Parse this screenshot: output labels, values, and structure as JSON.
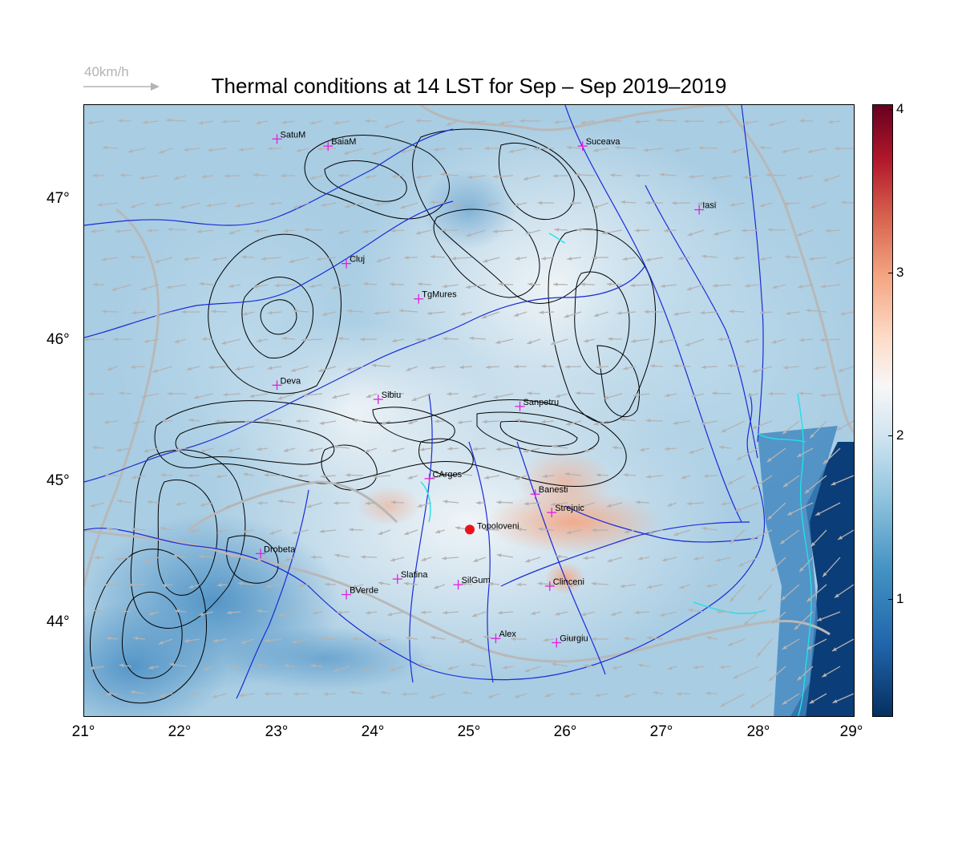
{
  "title": "Thermal conditions at 14 LST for Sep – Sep  2019–2019",
  "scale": {
    "label": "40km/h",
    "color": "#b3b3b3"
  },
  "axes": {
    "x_ticks": [
      "21°",
      "22°",
      "23°",
      "24°",
      "25°",
      "26°",
      "27°",
      "28°",
      "29°"
    ],
    "y_ticks": [
      "47°",
      "46°",
      "45°",
      "44°"
    ],
    "lon_range": [
      21,
      29
    ],
    "lat_range": [
      43.35,
      47.68
    ]
  },
  "colorbar": {
    "ticks": [
      "4",
      "3",
      "2",
      "1"
    ],
    "range": [
      0.3,
      4.05
    ],
    "colors": [
      "#053061",
      "#2166ac",
      "#4393c3",
      "#92c5de",
      "#d1e5f0",
      "#f7f7f7",
      "#fddbc7",
      "#f4a582",
      "#d6604d",
      "#b2182b",
      "#67001f"
    ]
  },
  "stations": [
    {
      "name": "SatuM",
      "lon": 23.0,
      "lat": 47.44
    },
    {
      "name": "BaiaM",
      "lon": 23.53,
      "lat": 47.39
    },
    {
      "name": "Suceava",
      "lon": 26.17,
      "lat": 47.39
    },
    {
      "name": "Iasi",
      "lon": 27.38,
      "lat": 46.94
    },
    {
      "name": "Cluj",
      "lon": 23.72,
      "lat": 46.56
    },
    {
      "name": "TgMures",
      "lon": 24.47,
      "lat": 46.31
    },
    {
      "name": "Deva",
      "lon": 23.0,
      "lat": 45.7
    },
    {
      "name": "Sibiu",
      "lon": 24.05,
      "lat": 45.6
    },
    {
      "name": "Sanpetru",
      "lon": 25.52,
      "lat": 45.55
    },
    {
      "name": "CArges",
      "lon": 24.58,
      "lat": 45.04
    },
    {
      "name": "Banesti",
      "lon": 25.68,
      "lat": 44.93
    },
    {
      "name": "Strejnic",
      "lon": 25.85,
      "lat": 44.8
    },
    {
      "name": "Drobeta",
      "lon": 22.83,
      "lat": 44.51
    },
    {
      "name": "Slatina",
      "lon": 24.25,
      "lat": 44.33
    },
    {
      "name": "SilGum",
      "lon": 24.88,
      "lat": 44.29
    },
    {
      "name": "Clinceni",
      "lon": 25.83,
      "lat": 44.28
    },
    {
      "name": "BVerde",
      "lon": 23.72,
      "lat": 44.22
    },
    {
      "name": "Alex",
      "lon": 25.27,
      "lat": 43.91
    },
    {
      "name": "Giurgiu",
      "lon": 25.9,
      "lat": 43.88
    }
  ],
  "highlight_station": {
    "name": "Topoloveni",
    "lon": 25.0,
    "lat": 44.68,
    "color": "#e8141c"
  },
  "station_marker_color": "#e020e0",
  "river_color": "#1a2bd6",
  "coast_color": "#22e0e8",
  "contour_color": "#000000",
  "wind_color": "#b3b3b3"
}
